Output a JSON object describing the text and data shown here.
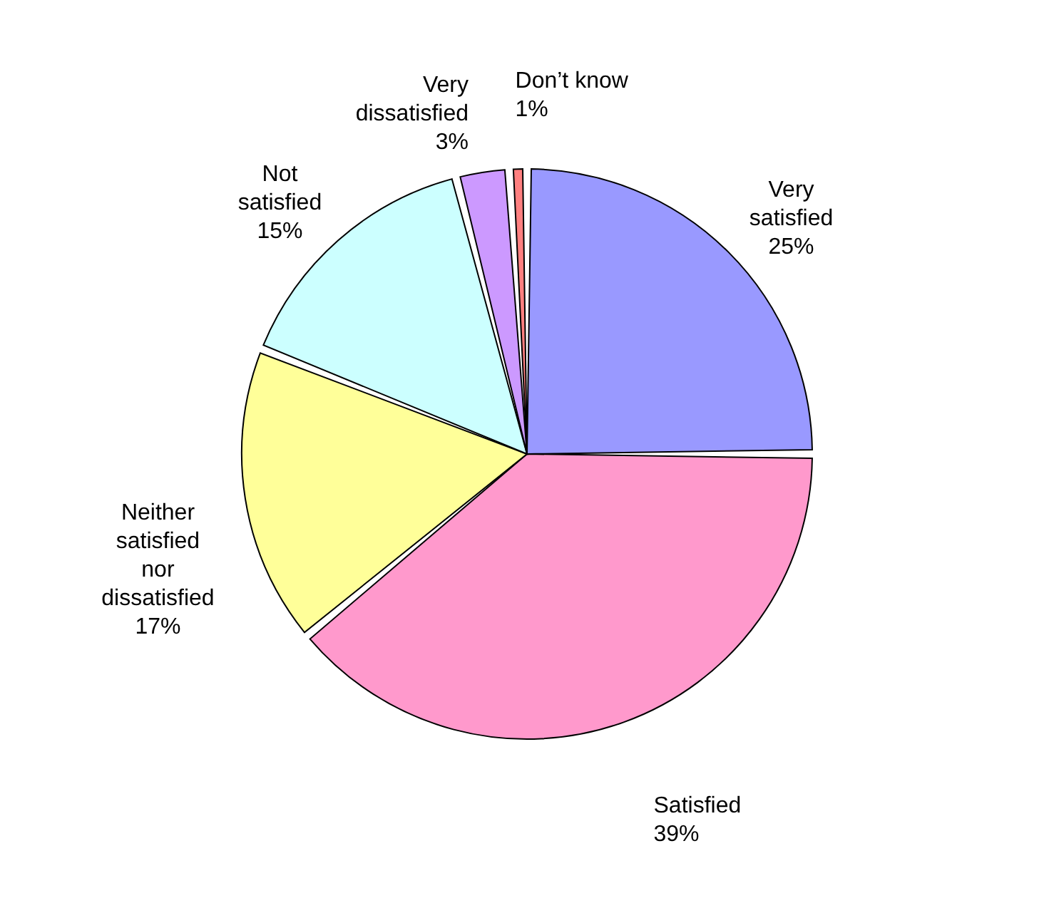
{
  "chart_data": {
    "type": "pie",
    "categories": [
      "Very satisfied",
      "Satisfied",
      "Neither satisfied nor dissatisfied",
      "Not satisfied",
      "Very dissatisfied",
      "Don’t know"
    ],
    "values": [
      25,
      39,
      17,
      15,
      3,
      1
    ],
    "value_labels": [
      "25%",
      "39%",
      "17%",
      "15%",
      "3%",
      "1%"
    ],
    "colors": [
      "#9999ff",
      "#ff99cc",
      "#ffff99",
      "#ccffff",
      "#cc99ff",
      "#ff8080"
    ],
    "legend": false
  }
}
